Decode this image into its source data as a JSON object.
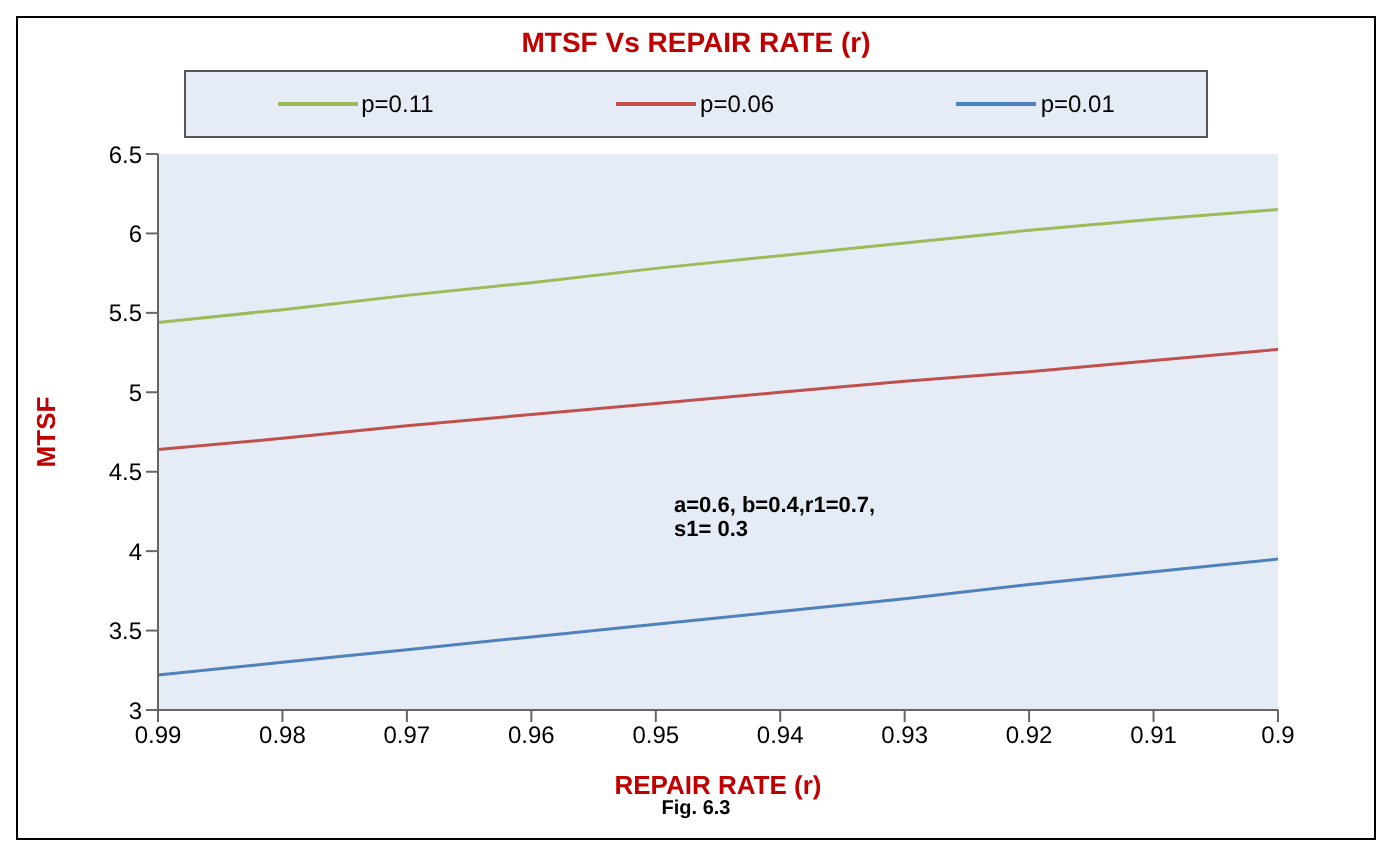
{
  "chart_data": {
    "type": "line",
    "title": "MTSF Vs REPAIR RATE (r)",
    "xlabel": "REPAIR RATE (r)",
    "ylabel": "MTSF",
    "annotations": [
      "a=0.6, b=0.4,r1=0.7, s1= 0.3",
      "Fig. 6.3"
    ],
    "x": [
      0.99,
      0.98,
      0.97,
      0.96,
      0.95,
      0.94,
      0.93,
      0.92,
      0.91,
      0.9
    ],
    "series": [
      {
        "name": "p=0.11",
        "color": "#9bbb59",
        "values": [
          5.44,
          5.52,
          5.61,
          5.69,
          5.78,
          5.86,
          5.94,
          6.02,
          6.09,
          6.15
        ]
      },
      {
        "name": "p=0.06",
        "color": "#c0504d",
        "values": [
          4.64,
          4.71,
          4.79,
          4.86,
          4.93,
          5.0,
          5.07,
          5.13,
          5.2,
          5.27
        ]
      },
      {
        "name": "p=0.01",
        "color": "#4f81bd",
        "values": [
          3.22,
          3.3,
          3.38,
          3.46,
          3.54,
          3.62,
          3.7,
          3.79,
          3.87,
          3.95
        ]
      }
    ],
    "xlim": [
      0.99,
      0.9
    ],
    "xticks": [
      0.99,
      0.98,
      0.97,
      0.96,
      0.95,
      0.94,
      0.93,
      0.92,
      0.91,
      0.9
    ],
    "ylim": [
      3,
      6.5
    ],
    "yticks": [
      3,
      3.5,
      4,
      4.5,
      5,
      5.5,
      6,
      6.5
    ],
    "legend": "top",
    "marker": "none",
    "line_style": "solid"
  }
}
